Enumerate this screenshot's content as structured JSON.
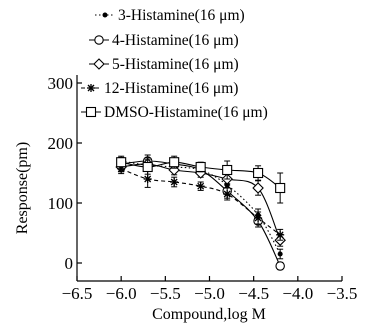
{
  "chart_data": {
    "type": "scatter",
    "xlabel": "Compound,log M",
    "ylabel": "Response(pm)",
    "xlim": [
      -6.5,
      -3.5
    ],
    "ylim": [
      -30,
      310
    ],
    "xticks": [
      -6.5,
      -6.0,
      -5.5,
      -5.0,
      -4.5,
      -4.0,
      -3.5
    ],
    "xtick_labels": [
      "-6.5",
      "-6.0",
      "-5.5",
      "-5.0",
      "-4.5",
      "-4.0",
      "-3.5"
    ],
    "yticks": [
      0,
      100,
      200,
      300
    ],
    "ytick_labels": [
      "0",
      "100",
      "200",
      "300"
    ],
    "legend_position": "top",
    "grid": false,
    "x": [
      -6.0,
      -5.7,
      -5.4,
      -5.1,
      -4.8,
      -4.45,
      -4.2
    ],
    "series": [
      {
        "name": "3-Histamine(16 μm)",
        "marker": "dot",
        "line": "dotted",
        "values": [
          170,
          163,
          160,
          155,
          130,
          80,
          15
        ],
        "errors": [
          8,
          10,
          8,
          7,
          12,
          10,
          8
        ]
      },
      {
        "name": "4-Histamine(16 μm)",
        "marker": "circle-open",
        "line": "solid",
        "values": [
          165,
          170,
          165,
          155,
          120,
          70,
          -5
        ],
        "errors": [
          8,
          10,
          9,
          8,
          12,
          10,
          6
        ]
      },
      {
        "name": "5-Histamine(16 μm)",
        "marker": "diamond-open",
        "line": "solid",
        "values": [
          160,
          165,
          155,
          150,
          140,
          125,
          38
        ],
        "errors": [
          8,
          10,
          8,
          7,
          10,
          12,
          10
        ]
      },
      {
        "name": "12-Histamine(16 μm)",
        "marker": "star",
        "line": "dashed",
        "values": [
          157,
          140,
          135,
          128,
          115,
          75,
          47
        ],
        "errors": [
          8,
          14,
          8,
          7,
          10,
          10,
          9
        ]
      },
      {
        "name": "DMSO-Histamine(16 μm)",
        "marker": "square-open",
        "line": "solid",
        "values": [
          168,
          160,
          168,
          160,
          155,
          150,
          125
        ],
        "errors": [
          8,
          12,
          10,
          8,
          15,
          12,
          25
        ]
      }
    ]
  }
}
